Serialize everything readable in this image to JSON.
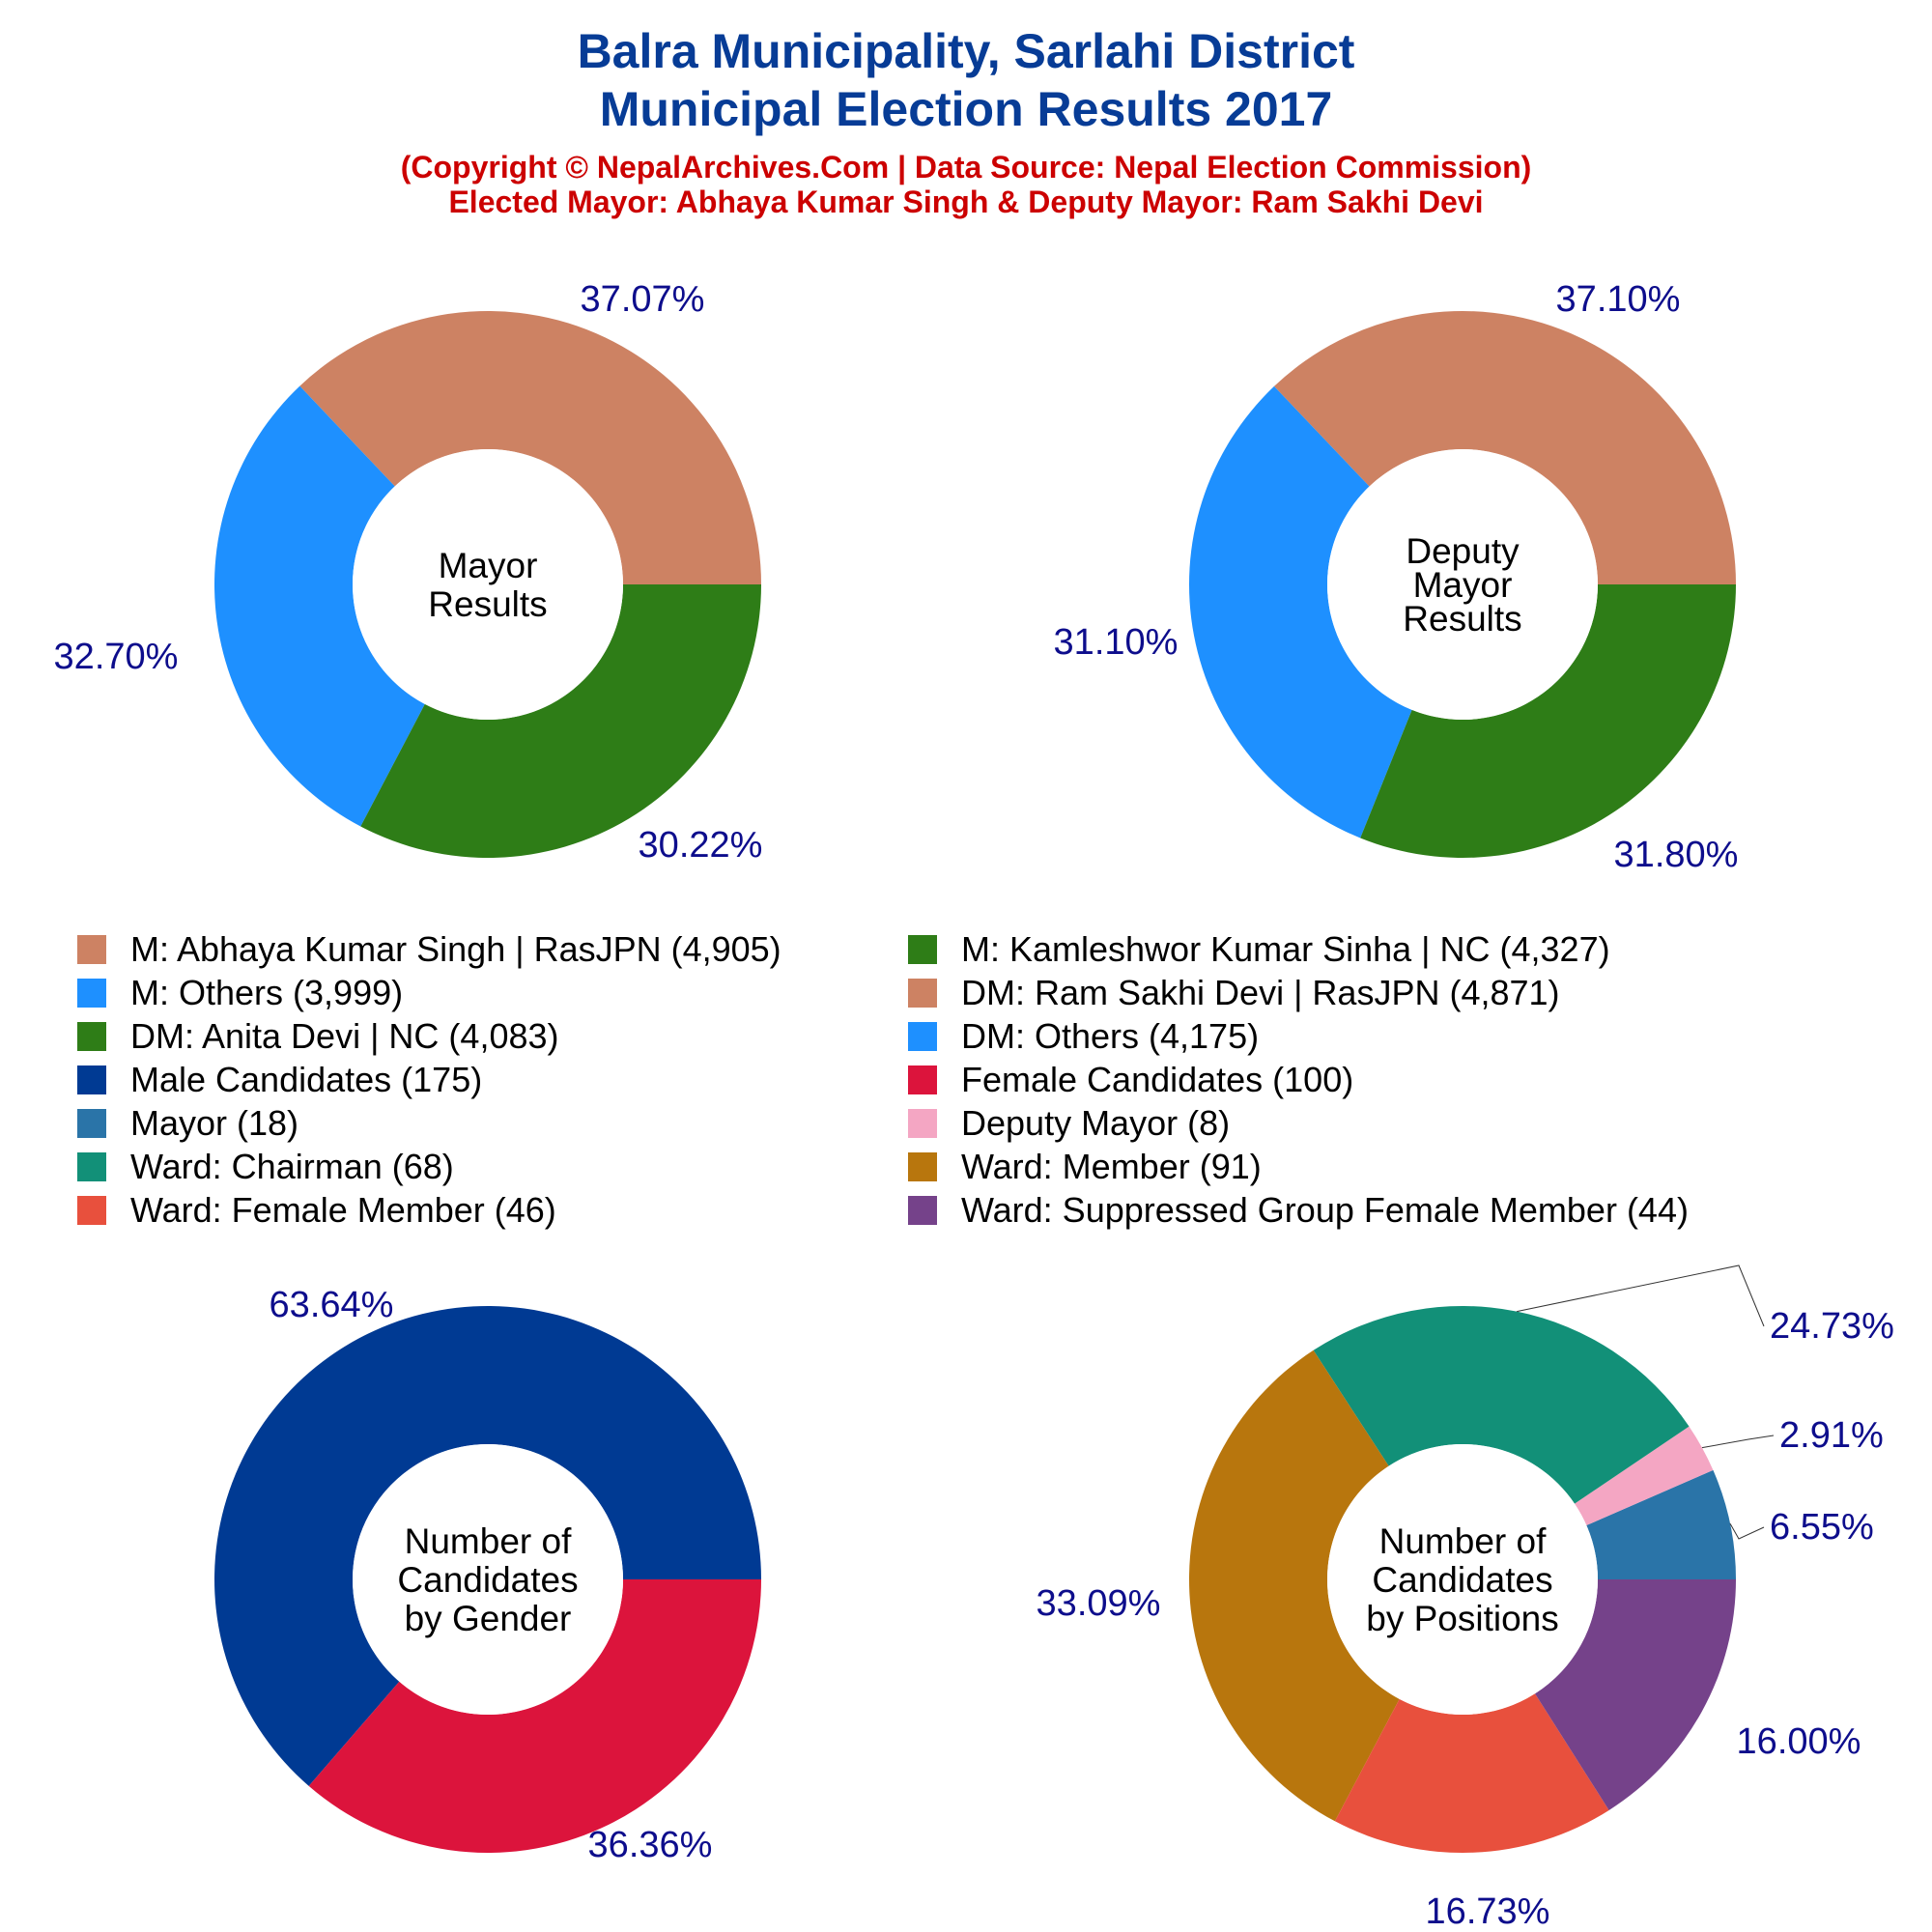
{
  "header": {
    "title_line1": "Balra Municipality, Sarlahi District",
    "title_line2": "Municipal Election Results 2017",
    "subtitle_line1": "(Copyright © NepalArchives.Com | Data Source: Nepal Election Commission)",
    "subtitle_line2": "Elected Mayor: Abhaya Kumar Singh & Deputy Mayor: Ram Sakhi Devi"
  },
  "chart_data": [
    {
      "type": "pie",
      "center_label": [
        "Mayor",
        "Results"
      ],
      "slices": [
        {
          "label": "M: Abhaya Kumar Singh | RasJPN",
          "value": 4905,
          "pct_label": "37.07%",
          "color": "#cd8263"
        },
        {
          "label": "M: Others",
          "value": 3999,
          "pct_label": "30.22%",
          "color": "#1e90ff"
        },
        {
          "label": "M: Kamleshwor Kumar Sinha | NC",
          "value": 4327,
          "pct_label": "32.70%",
          "color": "#2e7d17"
        }
      ]
    },
    {
      "type": "pie",
      "center_label": [
        "Deputy",
        "Mayor",
        "Results"
      ],
      "slices": [
        {
          "label": "DM: Ram Sakhi Devi | RasJPN",
          "value": 4871,
          "pct_label": "37.10%",
          "color": "#cd8263"
        },
        {
          "label": "DM: Others",
          "value": 4175,
          "pct_label": "31.80%",
          "color": "#1e90ff"
        },
        {
          "label": "DM: Anita Devi | NC",
          "value": 4083,
          "pct_label": "31.10%",
          "color": "#2e7d17"
        }
      ]
    },
    {
      "type": "pie",
      "center_label": [
        "Number of",
        "Candidates",
        "by Gender"
      ],
      "slices": [
        {
          "label": "Male Candidates",
          "value": 175,
          "pct_label": "63.64%",
          "color": "#003a93"
        },
        {
          "label": "Female Candidates",
          "value": 100,
          "pct_label": "36.36%",
          "color": "#dc143c"
        }
      ]
    },
    {
      "type": "pie",
      "center_label": [
        "Number of",
        "Candidates",
        "by Positions"
      ],
      "slices": [
        {
          "label": "Mayor",
          "value": 18,
          "pct_label": "6.55%",
          "color": "#2a74a8"
        },
        {
          "label": "Deputy Mayor",
          "value": 8,
          "pct_label": "2.91%",
          "color": "#f4a6c3"
        },
        {
          "label": "Ward: Chairman",
          "value": 68,
          "pct_label": "24.73%",
          "color": "#129078"
        },
        {
          "label": "Ward: Member",
          "value": 91,
          "pct_label": "33.09%",
          "color": "#b8760d"
        },
        {
          "label": "Ward: Female Member",
          "value": 46,
          "pct_label": "16.73%",
          "color": "#e8503d"
        },
        {
          "label": "Ward: Suppressed Group Female Member",
          "value": 44,
          "pct_label": "16.00%",
          "color": "#75428a"
        }
      ]
    }
  ],
  "legend": [
    {
      "text": "M: Abhaya Kumar Singh | RasJPN (4,905)",
      "color": "#cd8263"
    },
    {
      "text": "M: Kamleshwor Kumar Sinha | NC (4,327)",
      "color": "#2e7d17"
    },
    {
      "text": "M: Others (3,999)",
      "color": "#1e90ff"
    },
    {
      "text": "DM: Ram Sakhi Devi | RasJPN (4,871)",
      "color": "#cd8263"
    },
    {
      "text": "DM: Anita Devi | NC (4,083)",
      "color": "#2e7d17"
    },
    {
      "text": "DM: Others (4,175)",
      "color": "#1e90ff"
    },
    {
      "text": "Male Candidates (175)",
      "color": "#003a93"
    },
    {
      "text": "Female Candidates (100)",
      "color": "#dc143c"
    },
    {
      "text": "Mayor (18)",
      "color": "#2a74a8"
    },
    {
      "text": "Deputy Mayor (8)",
      "color": "#f4a6c3"
    },
    {
      "text": "Ward: Chairman (68)",
      "color": "#129078"
    },
    {
      "text": "Ward: Member (91)",
      "color": "#b8760d"
    },
    {
      "text": "Ward: Female Member (46)",
      "color": "#e8503d"
    },
    {
      "text": "Ward: Suppressed Group Female Member (44)",
      "color": "#75428a"
    }
  ]
}
